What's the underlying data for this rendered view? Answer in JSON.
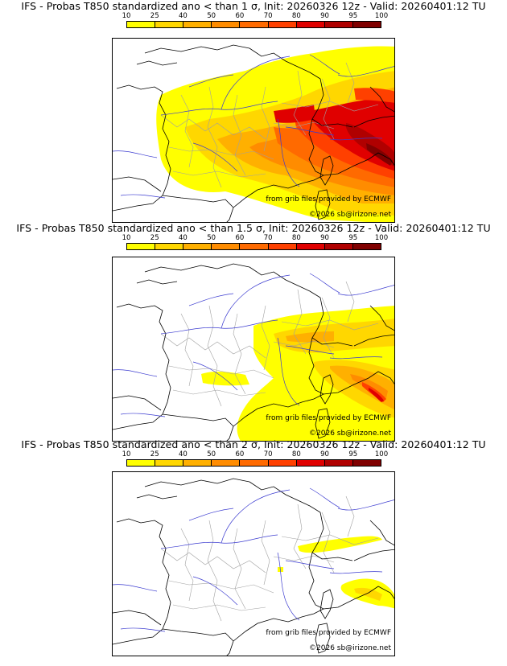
{
  "colors": {
    "c10": "#ffff00",
    "c25": "#ffd700",
    "c40": "#ffb000",
    "c50": "#ff8c00",
    "c60": "#ff6a00",
    "c70": "#ff4000",
    "c80": "#e00000",
    "c90": "#b00000",
    "c95": "#800000",
    "c100": "#400000",
    "coast": "#000000",
    "rivers": "#3333cc",
    "admin": "#999999"
  },
  "legend": {
    "ticks": [
      "10",
      "25",
      "40",
      "50",
      "60",
      "70",
      "80",
      "90",
      "95",
      "100"
    ],
    "swatch_colors": [
      "#ffff00",
      "#ffd700",
      "#ffb000",
      "#ff8c00",
      "#ff6a00",
      "#ff4000",
      "#e00000",
      "#b00000",
      "#800000"
    ]
  },
  "panels": [
    {
      "title": "IFS - Probas T850  standardized ano < than 1 σ, Init: 20260326 12z - Valid: 20260401:12 TU",
      "source_credit": "from grib files provided by ECMWF",
      "copyright": "©2026 sb@irizone.net",
      "threshold": "1 σ"
    },
    {
      "title": "IFS - Probas T850  standardized ano < than 1.5 σ, Init: 20260326 12z - Valid: 20260401:12 TU",
      "source_credit": "from grib files provided by ECMWF",
      "copyright": "©2026 sb@irizone.net",
      "threshold": "1.5 σ"
    },
    {
      "title": "IFS - Probas T850  standardized ano < than 2 σ, Init: 20260326 12z - Valid: 20260401:12 TU",
      "source_credit": "from grib files provided by ECMWF",
      "copyright": "©2026 sb@irizone.net",
      "threshold": "2 σ"
    }
  ]
}
